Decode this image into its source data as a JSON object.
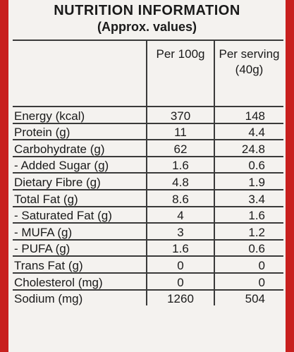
{
  "header": {
    "title": "NUTRITION INFORMATION",
    "subtitle": "(Approx. values)"
  },
  "table": {
    "columns": [
      "Per 100g",
      "Per serving (40g)"
    ],
    "rows": [
      {
        "name": "Energy (kcal)",
        "per100g": "370",
        "perServing": "148"
      },
      {
        "name": "Protein (g)",
        "per100g": "11",
        "perServing": "4.4"
      },
      {
        "name": "Carbohydrate (g)",
        "per100g": "62",
        "perServing": "24.8"
      },
      {
        "name": " - Added Sugar (g)",
        "per100g": "1.6",
        "perServing": "0.6"
      },
      {
        "name": "Dietary Fibre (g)",
        "per100g": "4.8",
        "perServing": "1.9"
      },
      {
        "name": "Total Fat (g)",
        "per100g": "8.6",
        "perServing": "3.4"
      },
      {
        "name": " - Saturated Fat (g)",
        "per100g": "4",
        "perServing": "1.6"
      },
      {
        "name": " - MUFA (g)",
        "per100g": "3",
        "perServing": "1.2"
      },
      {
        "name": " - PUFA (g)",
        "per100g": "1.6",
        "perServing": "0.6"
      },
      {
        "name": "Trans Fat (g)",
        "per100g": "0",
        "perServing": "0"
      },
      {
        "name": "Cholesterol (mg)",
        "per100g": "0",
        "perServing": "0"
      },
      {
        "name": "Sodium (mg)",
        "per100g": "1260",
        "perServing": "504"
      }
    ]
  },
  "colors": {
    "packaging_red": "#c8201e",
    "panel_background": "#f4f2ef",
    "text": "#1a1a1a"
  }
}
